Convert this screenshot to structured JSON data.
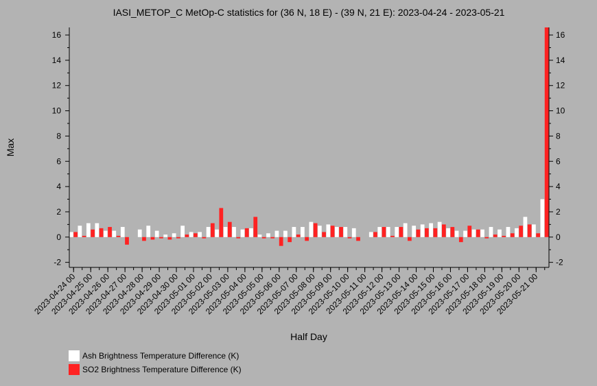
{
  "chart_data": {
    "type": "bar",
    "title": "IASI_METOP_C MetOp-C statistics for (36 N, 18 E) - (39 N, 21 E): 2023-04-24 - 2023-05-21",
    "xlabel": "Half Day",
    "ylabel": "Max",
    "ylim": [
      -2.4,
      16.6
    ],
    "yticks": [
      -2,
      0,
      2,
      4,
      6,
      8,
      10,
      12,
      14,
      16
    ],
    "ytick_labels": [
      "-2",
      "0",
      "2",
      "4",
      "6",
      "8",
      "10",
      "12",
      "14",
      "16"
    ],
    "categories": [
      "2023-04-24 00",
      "2023-04-24 12",
      "2023-04-25 00",
      "2023-04-25 12",
      "2023-04-26 00",
      "2023-04-26 12",
      "2023-04-27 00",
      "2023-04-27 12",
      "2023-04-28 00",
      "2023-04-28 12",
      "2023-04-29 00",
      "2023-04-29 12",
      "2023-04-30 00",
      "2023-04-30 12",
      "2023-05-01 00",
      "2023-05-01 12",
      "2023-05-02 00",
      "2023-05-02 12",
      "2023-05-03 00",
      "2023-05-03 12",
      "2023-05-04 00",
      "2023-05-04 12",
      "2023-05-05 00",
      "2023-05-05 12",
      "2023-05-06 00",
      "2023-05-06 12",
      "2023-05-07 00",
      "2023-05-07 12",
      "2023-05-08 00",
      "2023-05-08 12",
      "2023-05-09 00",
      "2023-05-09 12",
      "2023-05-10 00",
      "2023-05-10 12",
      "2023-05-11 00",
      "2023-05-11 12",
      "2023-05-12 00",
      "2023-05-12 12",
      "2023-05-13 00",
      "2023-05-13 12",
      "2023-05-14 00",
      "2023-05-14 12",
      "2023-05-15 00",
      "2023-05-15 12",
      "2023-05-16 00",
      "2023-05-16 12",
      "2023-05-17 00",
      "2023-05-17 12",
      "2023-05-18 00",
      "2023-05-18 12",
      "2023-05-19 00",
      "2023-05-19 12",
      "2023-05-20 00",
      "2023-05-20 12",
      "2023-05-21 00",
      "2023-05-21 12"
    ],
    "xtick_labels": [
      "2023-04-24 00",
      "2023-04-25 00",
      "2023-04-26 00",
      "2023-04-27 00",
      "2023-04-28 00",
      "2023-04-29 00",
      "2023-04-30 00",
      "2023-05-01 00",
      "2023-05-02 00",
      "2023-05-03 00",
      "2023-05-04 00",
      "2023-05-05 00",
      "2023-05-06 00",
      "2023-05-07 00",
      "2023-05-08 00",
      "2023-05-09 00",
      "2023-05-10 00",
      "2023-05-11 00",
      "2023-05-12 00",
      "2023-05-13 00",
      "2023-05-14 00",
      "2023-05-15 00",
      "2023-05-16 00",
      "2023-05-17 00",
      "2023-05-18 00",
      "2023-05-19 00",
      "2023-05-20 00",
      "2023-05-21 00"
    ],
    "series": [
      {
        "name": "Ash Brightness Temperature Difference (K)",
        "color": "#ffffff",
        "values": [
          0.4,
          0.9,
          1.1,
          1.1,
          0.5,
          0.5,
          0.8,
          null,
          0.6,
          0.9,
          0.5,
          0.2,
          0.3,
          0.9,
          0.4,
          0.4,
          0.8,
          0.6,
          0.8,
          0.8,
          0.6,
          0.7,
          0.2,
          0.3,
          0.5,
          0.5,
          0.8,
          0.8,
          1.2,
          0.9,
          1.0,
          0.8,
          0.8,
          0.7,
          null,
          0.4,
          0.8,
          0.8,
          0.8,
          1.1,
          0.9,
          1.0,
          1.1,
          1.2,
          0.7,
          0.5,
          0.5,
          0.6,
          0.6,
          0.8,
          0.6,
          0.8,
          0.7,
          1.6,
          1.0,
          3.0
        ]
      },
      {
        "name": "SO2 Brightness Temperature Difference (K)",
        "color": "#ff2222",
        "values": [
          0.4,
          0.1,
          0.6,
          0.7,
          0.8,
          0.1,
          -0.6,
          null,
          -0.3,
          -0.2,
          -0.1,
          -0.2,
          -0.1,
          0.2,
          0.3,
          -0.1,
          1.1,
          2.3,
          1.2,
          -0.1,
          0.7,
          1.6,
          -0.1,
          -0.1,
          -0.7,
          -0.4,
          0.2,
          -0.3,
          1.1,
          0.4,
          0.9,
          0.8,
          -0.1,
          -0.3,
          null,
          0.4,
          0.8,
          0.1,
          0.8,
          -0.3,
          0.6,
          0.7,
          0.7,
          1.0,
          0.8,
          -0.4,
          0.9,
          0.6,
          -0.1,
          0.2,
          0.1,
          0.3,
          0.9,
          1.0,
          0.3,
          16.6
        ]
      }
    ],
    "legend": "bottom-left",
    "grid": false
  }
}
